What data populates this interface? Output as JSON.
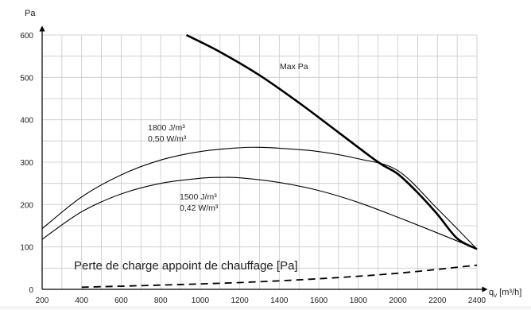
{
  "chart_data": {
    "type": "line",
    "ylabel": "Pa",
    "xlabel": "q_v [m³/h]",
    "xlim": [
      200,
      2400
    ],
    "ylim": [
      0,
      600
    ],
    "x_ticks": [
      "200",
      "400",
      "600",
      "800",
      "1000",
      "1200",
      "1400",
      "1600",
      "1800",
      "2000",
      "2200",
      "2400"
    ],
    "y_ticks": [
      "0",
      "100",
      "200",
      "300",
      "400",
      "500",
      "600"
    ],
    "grid": true,
    "series": [
      {
        "name": "Max Pa",
        "labels": [
          "Max Pa"
        ],
        "color": "#000000",
        "stroke": "thick",
        "x": [
          930,
          1100,
          1300,
          1500,
          1700,
          1900,
          2000,
          2100,
          2200,
          2300,
          2400
        ],
        "y": [
          600,
          560,
          505,
          440,
          370,
          300,
          272,
          228,
          177,
          120,
          95
        ]
      },
      {
        "name": "1800 J/m³ 0,50 W/m³",
        "labels": [
          "1800 J/m³",
          "0,50 W/m³"
        ],
        "color": "#000000",
        "stroke": "thin",
        "x": [
          200,
          400,
          600,
          800,
          1000,
          1200,
          1300,
          1400,
          1600,
          1800,
          2000,
          2200,
          2400
        ],
        "y": [
          143,
          218,
          270,
          305,
          325,
          334,
          335,
          333,
          325,
          308,
          280,
          190,
          95
        ]
      },
      {
        "name": "1500 J/m³ 0,42 W/m³",
        "labels": [
          "1500 J/m³",
          "0,42 W/m³"
        ],
        "color": "#000000",
        "stroke": "thin",
        "x": [
          200,
          400,
          600,
          800,
          1000,
          1100,
          1200,
          1400,
          1600,
          1800,
          2000,
          2200,
          2400
        ],
        "y": [
          118,
          183,
          225,
          250,
          262,
          264,
          263,
          252,
          233,
          205,
          170,
          133,
          95
        ]
      },
      {
        "name": "Perte de charge appoint de chauffage [Pa]",
        "labels": [
          "Perte de charge appoint de chauffage [Pa]"
        ],
        "color": "#000000",
        "stroke": "dashed",
        "x": [
          400,
          800,
          1200,
          1600,
          2000,
          2400
        ],
        "y": [
          5,
          10,
          16,
          25,
          38,
          57
        ]
      }
    ]
  }
}
